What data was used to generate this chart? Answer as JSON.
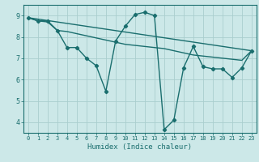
{
  "xlabel": "Humidex (Indice chaleur)",
  "xlim": [
    -0.5,
    23.5
  ],
  "ylim": [
    3.5,
    9.5
  ],
  "yticks": [
    4,
    5,
    6,
    7,
    8,
    9
  ],
  "xticks": [
    0,
    1,
    2,
    3,
    4,
    5,
    6,
    7,
    8,
    9,
    10,
    11,
    12,
    13,
    14,
    15,
    16,
    17,
    18,
    19,
    20,
    21,
    22,
    23
  ],
  "bg_color": "#cce8e8",
  "grid_color": "#aacece",
  "line_color": "#1a6e6e",
  "lines": [
    {
      "x": [
        0,
        1,
        2,
        3,
        4,
        5,
        6,
        7,
        8,
        9,
        10,
        11,
        12,
        13,
        14,
        15,
        16,
        17,
        18,
        19,
        20,
        21,
        22,
        23
      ],
      "y": [
        8.9,
        8.75,
        8.75,
        8.3,
        7.5,
        7.5,
        7.0,
        6.65,
        5.45,
        7.8,
        8.5,
        9.05,
        9.15,
        9.0,
        3.65,
        4.1,
        6.55,
        7.55,
        6.6,
        6.5,
        6.5,
        6.1,
        6.55,
        7.35
      ],
      "marker": "D",
      "markersize": 2.2,
      "linewidth": 1.0
    },
    {
      "x": [
        0,
        1,
        2,
        3,
        4,
        5,
        6,
        7,
        8,
        9,
        10,
        11,
        12,
        13,
        14,
        15,
        16,
        17,
        18,
        19,
        20,
        21,
        22,
        23
      ],
      "y": [
        8.9,
        8.75,
        8.7,
        8.3,
        8.25,
        8.15,
        8.05,
        7.95,
        7.85,
        7.75,
        7.65,
        7.6,
        7.55,
        7.5,
        7.45,
        7.35,
        7.25,
        7.15,
        7.1,
        7.05,
        7.0,
        6.95,
        6.9,
        7.35
      ],
      "marker": null,
      "markersize": 0,
      "linewidth": 1.0
    },
    {
      "x": [
        0,
        23
      ],
      "y": [
        8.9,
        7.35
      ],
      "marker": null,
      "markersize": 0,
      "linewidth": 1.0
    }
  ]
}
